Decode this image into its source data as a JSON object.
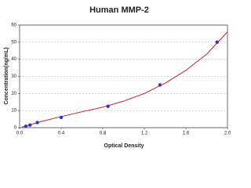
{
  "chart_data": {
    "type": "scatter",
    "title": "Human MMP-2",
    "x_label": "Optical Density",
    "y_label": "Concentration(ng/mL)",
    "xlim": [
      0,
      2
    ],
    "ylim": [
      0,
      60
    ],
    "xticks": [
      {
        "value": 0,
        "label": "0.0"
      },
      0.4,
      0.8,
      1.2,
      1.6,
      {
        "value": 2,
        "label": "2.0"
      }
    ],
    "yticks": [
      0,
      10,
      20,
      30,
      40,
      50,
      60
    ],
    "grid": true,
    "series": [
      {
        "color": "#3a2fc0",
        "x": [
          0.06,
          0.1,
          0.17,
          0.4,
          0.85,
          1.35,
          1.9
        ],
        "values": [
          0.8,
          1.5,
          3,
          6,
          12.5,
          25,
          50
        ]
      }
    ],
    "curve": {
      "color": "#cc1f1f",
      "x": [
        0.02,
        0.2,
        0.4,
        0.6,
        0.8,
        1.0,
        1.2,
        1.4,
        1.6,
        1.8,
        2.0
      ],
      "values": [
        0.3,
        3.5,
        6.5,
        9.3,
        12,
        15.5,
        20,
        26,
        33.5,
        43,
        56
      ]
    }
  }
}
